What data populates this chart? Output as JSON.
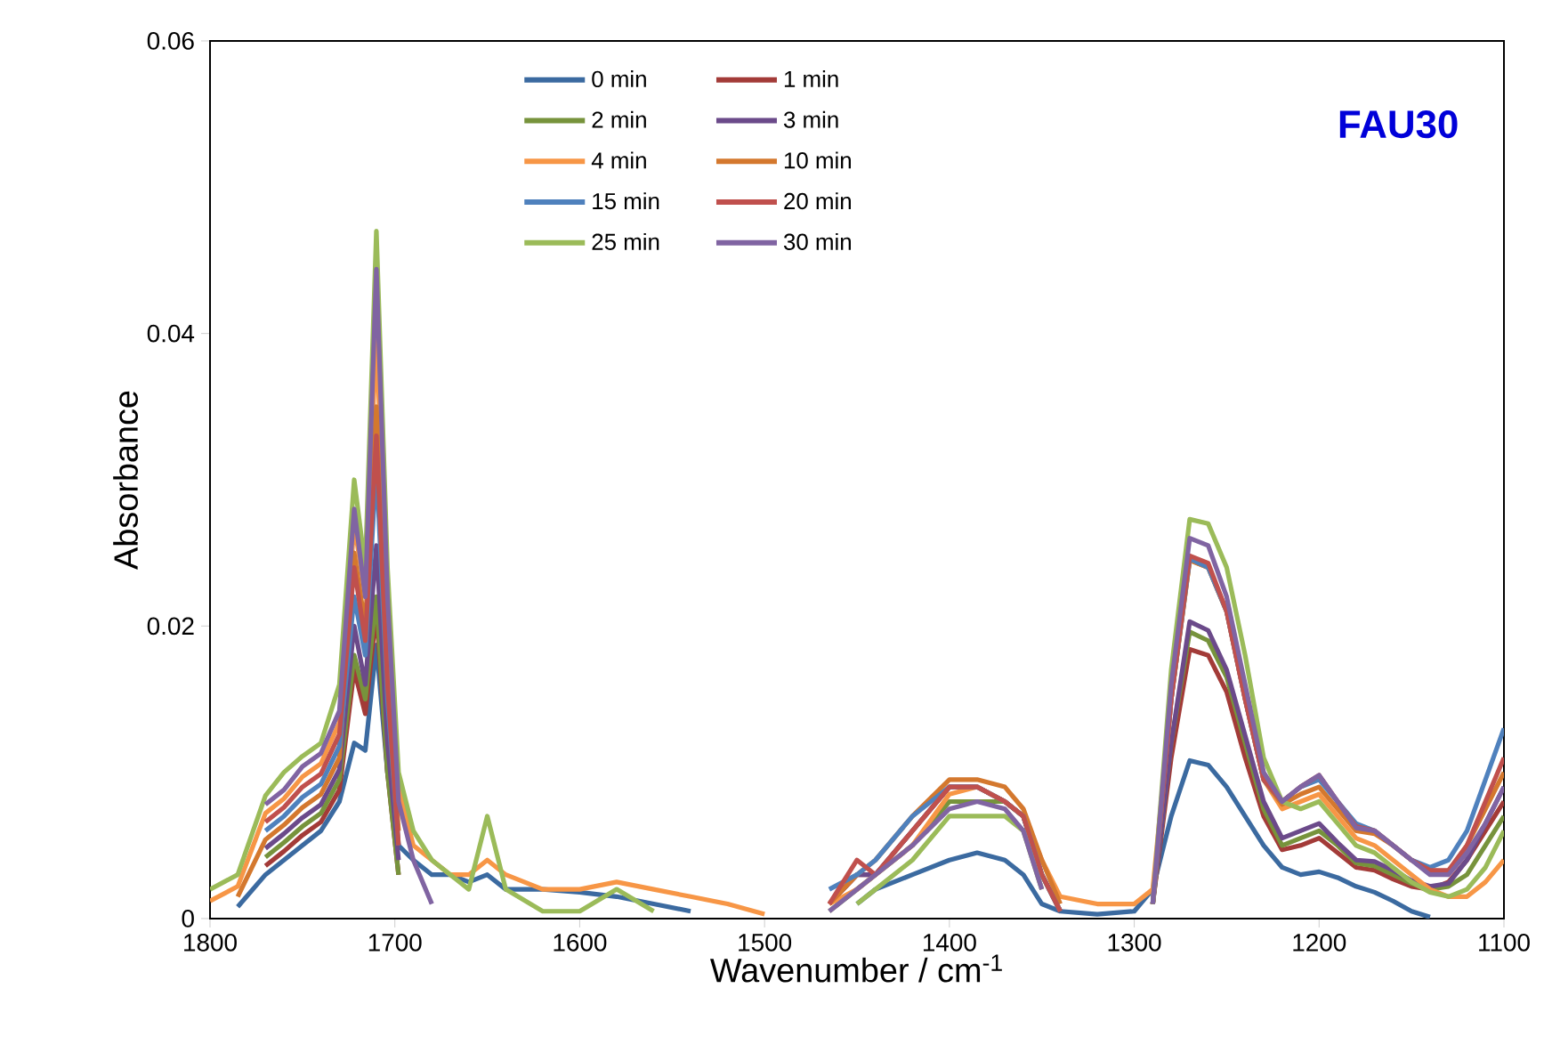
{
  "chart_data": {
    "type": "line",
    "xlabel": "Wavenumber / cm$^{-1}$",
    "ylabel": "Absorbance",
    "annotations": [
      "FAU30"
    ],
    "xlim": [
      1800,
      1100
    ],
    "xticks": [
      1800,
      1700,
      1600,
      1500,
      1400,
      1300,
      1200,
      1100
    ],
    "ylim": [
      0,
      0.06
    ],
    "yticks": [
      0,
      0.02,
      0.04,
      0.06
    ],
    "legend": "top",
    "grid": false,
    "x": [
      1800,
      1785,
      1770,
      1760,
      1750,
      1740,
      1730,
      1722,
      1716,
      1710,
      1704,
      1698,
      1690,
      1680,
      1670,
      1660,
      1650,
      1640,
      1620,
      1600,
      1580,
      1560,
      1540,
      1520,
      1500,
      1480,
      1465,
      1450,
      1440,
      1420,
      1400,
      1385,
      1370,
      1360,
      1350,
      1340,
      1320,
      1300,
      1290,
      1280,
      1270,
      1260,
      1250,
      1240,
      1230,
      1220,
      1210,
      1200,
      1190,
      1180,
      1170,
      1160,
      1150,
      1140,
      1130,
      1120,
      1110,
      1100
    ],
    "series": [
      {
        "name": "0 min",
        "color": "#3b6aa0",
        "values": [
          null,
          0.0008,
          0.003,
          0.004,
          0.005,
          0.006,
          0.008,
          0.012,
          0.0115,
          0.0187,
          0.01,
          0.005,
          0.004,
          0.003,
          0.003,
          0.0025,
          0.003,
          0.002,
          0.002,
          0.0018,
          0.0015,
          0.001,
          0.0005,
          null,
          null,
          null,
          null,
          0.001,
          0.002,
          0.003,
          0.004,
          0.0045,
          0.004,
          0.003,
          0.001,
          0.0005,
          0.0003,
          0.0005,
          0.002,
          0.007,
          0.0108,
          0.0105,
          0.009,
          0.007,
          0.005,
          0.0035,
          0.003,
          0.0032,
          0.0028,
          0.0022,
          0.0018,
          0.0012,
          0.0005,
          0.0001,
          null,
          null,
          null,
          null
        ]
      },
      {
        "name": "1 min",
        "color": "#a33b38",
        "values": [
          null,
          null,
          0.0036,
          0.0046,
          0.0057,
          0.0066,
          0.0088,
          0.017,
          0.014,
          0.021,
          0.01,
          0.003,
          null,
          null,
          null,
          null,
          null,
          null,
          null,
          null,
          null,
          null,
          null,
          null,
          null,
          null,
          0.001,
          0.003,
          0.003,
          0.006,
          0.009,
          0.009,
          0.008,
          0.007,
          0.003,
          0.0005,
          null,
          null,
          0.001,
          0.011,
          0.0184,
          0.018,
          0.0155,
          0.011,
          0.007,
          0.0047,
          0.005,
          0.0055,
          0.0045,
          0.0035,
          0.0033,
          0.0027,
          0.0022,
          0.002,
          0.0025,
          0.004,
          0.006,
          0.008
        ]
      },
      {
        "name": "2 min",
        "color": "#77933c",
        "values": [
          null,
          null,
          0.0042,
          0.0052,
          0.0063,
          0.0072,
          0.0095,
          0.018,
          0.015,
          0.022,
          0.01,
          0.003,
          null,
          null,
          null,
          null,
          null,
          null,
          null,
          null,
          null,
          null,
          null,
          null,
          null,
          null,
          0.0005,
          0.002,
          0.003,
          0.005,
          0.008,
          0.008,
          0.008,
          0.007,
          0.003,
          0.0005,
          null,
          null,
          0.001,
          0.012,
          0.0196,
          0.019,
          0.0165,
          0.012,
          0.0075,
          0.005,
          0.0055,
          0.006,
          0.005,
          0.0038,
          0.0036,
          0.003,
          0.0024,
          0.002,
          0.0022,
          0.003,
          0.005,
          0.007
        ]
      },
      {
        "name": "3 min",
        "color": "#6b4a8a",
        "values": [
          null,
          null,
          0.0048,
          0.0058,
          0.0069,
          0.0078,
          0.0102,
          0.02,
          0.016,
          0.0255,
          0.012,
          0.004,
          null,
          null,
          null,
          null,
          null,
          null,
          null,
          null,
          null,
          null,
          null,
          null,
          null,
          null,
          0.001,
          0.003,
          0.003,
          0.006,
          0.009,
          0.009,
          0.008,
          0.007,
          0.003,
          0.0005,
          null,
          null,
          0.001,
          0.012,
          0.0203,
          0.0197,
          0.017,
          0.0125,
          0.008,
          0.0055,
          0.006,
          0.0065,
          0.0052,
          0.004,
          0.0039,
          0.0033,
          0.0026,
          0.0022,
          0.0024,
          0.004,
          0.0065,
          0.009
        ]
      },
      {
        "name": "4 min",
        "color": "#f79646",
        "values": [
          0.0012,
          0.0022,
          0.0072,
          0.0082,
          0.0097,
          0.0106,
          0.0134,
          0.027,
          0.022,
          0.04,
          0.02,
          0.009,
          0.005,
          0.004,
          0.003,
          0.003,
          0.004,
          0.003,
          0.002,
          0.002,
          0.0025,
          0.002,
          0.0015,
          0.001,
          0.0003,
          null,
          0.001,
          0.002,
          0.003,
          0.005,
          0.0085,
          0.009,
          0.008,
          0.007,
          0.004,
          0.0015,
          0.001,
          0.001,
          0.002,
          0.015,
          0.0245,
          0.024,
          0.021,
          0.015,
          0.0095,
          0.0075,
          0.008,
          0.0085,
          0.007,
          0.0055,
          0.005,
          0.004,
          0.003,
          0.002,
          0.0015,
          0.0015,
          0.0025,
          0.004
        ]
      },
      {
        "name": "10 min",
        "color": "#d4782e",
        "values": [
          null,
          0.0015,
          0.0054,
          0.0064,
          0.0076,
          0.0085,
          0.011,
          0.025,
          0.02,
          0.035,
          0.017,
          0.006,
          null,
          null,
          null,
          null,
          null,
          null,
          null,
          null,
          null,
          null,
          null,
          null,
          null,
          null,
          0.001,
          0.003,
          0.004,
          0.007,
          0.0095,
          0.0095,
          0.009,
          0.0075,
          0.004,
          0.001,
          null,
          null,
          0.001,
          0.015,
          0.0245,
          0.024,
          0.021,
          0.015,
          0.0095,
          0.0078,
          0.0085,
          0.009,
          0.0075,
          0.006,
          0.0058,
          0.005,
          0.004,
          0.0033,
          0.0032,
          0.005,
          0.0075,
          0.01
        ]
      },
      {
        "name": "15 min",
        "color": "#4f81bd",
        "values": [
          null,
          null,
          0.006,
          0.007,
          0.0083,
          0.0092,
          0.0118,
          0.022,
          0.018,
          0.031,
          0.015,
          0.005,
          null,
          null,
          null,
          null,
          null,
          null,
          null,
          null,
          null,
          null,
          null,
          null,
          null,
          null,
          0.002,
          0.003,
          0.004,
          0.007,
          0.009,
          0.009,
          0.008,
          0.007,
          0.003,
          0.0005,
          null,
          null,
          0.001,
          0.015,
          0.0246,
          0.024,
          0.021,
          0.015,
          0.0095,
          0.008,
          0.009,
          0.0095,
          0.008,
          0.0065,
          0.006,
          0.005,
          0.004,
          0.0035,
          0.004,
          0.006,
          0.0095,
          0.013
        ]
      },
      {
        "name": "20 min",
        "color": "#c0504d",
        "values": [
          null,
          null,
          0.0066,
          0.0076,
          0.009,
          0.0099,
          0.0126,
          0.024,
          0.019,
          0.033,
          0.016,
          0.005,
          null,
          null,
          null,
          null,
          null,
          null,
          null,
          null,
          null,
          null,
          null,
          null,
          null,
          null,
          0.001,
          0.004,
          0.003,
          0.006,
          0.009,
          0.009,
          0.008,
          0.007,
          0.003,
          0.0005,
          null,
          null,
          0.001,
          0.015,
          0.0248,
          0.0243,
          0.021,
          0.015,
          0.0095,
          0.008,
          0.009,
          0.0098,
          0.008,
          0.0063,
          0.006,
          0.005,
          0.004,
          0.0033,
          0.0033,
          0.005,
          0.008,
          0.011
        ]
      },
      {
        "name": "25 min",
        "color": "#9bbb59",
        "values": [
          0.002,
          0.003,
          0.0084,
          0.01,
          0.0111,
          0.012,
          0.016,
          0.03,
          0.024,
          0.047,
          0.024,
          0.01,
          0.006,
          0.004,
          0.003,
          0.002,
          0.007,
          0.002,
          0.0005,
          0.0005,
          0.002,
          0.0005,
          null,
          null,
          null,
          null,
          null,
          0.001,
          0.002,
          0.004,
          0.007,
          0.007,
          0.007,
          0.006,
          0.002,
          null,
          null,
          null,
          0.001,
          0.017,
          0.0273,
          0.027,
          0.024,
          0.018,
          0.011,
          0.008,
          0.0075,
          0.008,
          0.0065,
          0.005,
          0.0045,
          0.0035,
          0.0025,
          0.0018,
          0.0015,
          0.002,
          0.0035,
          0.006
        ]
      },
      {
        "name": "30 min",
        "color": "#8064a2",
        "values": [
          null,
          null,
          0.0078,
          0.0088,
          0.0104,
          0.0113,
          0.0142,
          0.028,
          0.022,
          0.0444,
          0.022,
          0.008,
          0.004,
          0.001,
          null,
          null,
          null,
          null,
          null,
          null,
          null,
          null,
          null,
          null,
          null,
          null,
          0.0005,
          0.002,
          0.003,
          0.005,
          0.0075,
          0.008,
          0.0075,
          0.006,
          0.002,
          null,
          null,
          null,
          0.001,
          0.016,
          0.026,
          0.0255,
          0.022,
          0.016,
          0.01,
          0.008,
          0.009,
          0.0098,
          0.008,
          0.0062,
          0.006,
          0.005,
          0.004,
          0.003,
          0.003,
          0.0045,
          0.0065,
          0.009
        ]
      }
    ]
  }
}
